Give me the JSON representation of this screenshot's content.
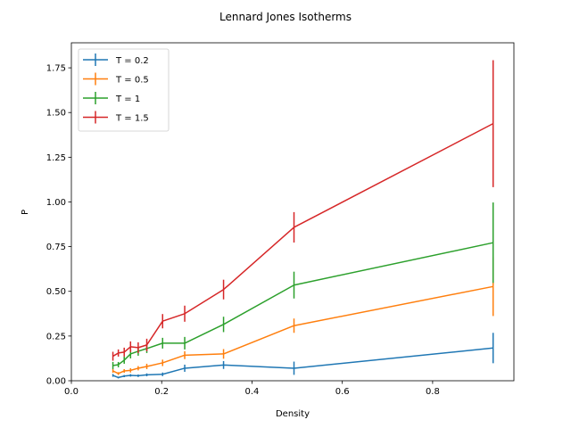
{
  "chart_data": {
    "type": "line",
    "title": "Lennard Jones Isotherms",
    "xlabel": "Density",
    "ylabel": "P",
    "xlim": [
      0.0,
      0.98
    ],
    "ylim": [
      0.0,
      1.89
    ],
    "xticks": [
      0.0,
      0.2,
      0.4,
      0.6,
      0.8
    ],
    "xtick_labels": [
      "0.0",
      "0.2",
      "0.4",
      "0.6",
      "0.8"
    ],
    "yticks": [
      0.0,
      0.25,
      0.5,
      0.75,
      1.0,
      1.25,
      1.5,
      1.75
    ],
    "ytick_labels": [
      "0.00",
      "0.25",
      "0.50",
      "0.75",
      "1.00",
      "1.25",
      "1.50",
      "1.75"
    ],
    "grid": false,
    "legend_position": "top-left",
    "x": [
      0.092,
      0.104,
      0.117,
      0.131,
      0.148,
      0.167,
      0.202,
      0.251,
      0.337,
      0.493,
      0.934
    ],
    "series": [
      {
        "name": "T = 0.2",
        "color": "#1f77b4",
        "values": [
          0.03,
          0.018,
          0.026,
          0.03,
          0.028,
          0.033,
          0.036,
          0.07,
          0.088,
          0.07,
          0.183
        ],
        "errors": [
          0.008,
          0.005,
          0.006,
          0.007,
          0.007,
          0.008,
          0.01,
          0.02,
          0.022,
          0.037,
          0.085
        ]
      },
      {
        "name": "T = 0.5",
        "color": "#ff7f0e",
        "values": [
          0.055,
          0.04,
          0.055,
          0.058,
          0.07,
          0.08,
          0.1,
          0.143,
          0.15,
          0.308,
          0.527
        ],
        "errors": [
          0.01,
          0.008,
          0.01,
          0.012,
          0.012,
          0.015,
          0.018,
          0.022,
          0.027,
          0.04,
          0.165
        ]
      },
      {
        "name": "T = 1",
        "color": "#2ca02c",
        "values": [
          0.085,
          0.09,
          0.115,
          0.15,
          0.165,
          0.18,
          0.21,
          0.21,
          0.315,
          0.535,
          0.772
        ],
        "errors": [
          0.02,
          0.015,
          0.02,
          0.025,
          0.025,
          0.025,
          0.03,
          0.035,
          0.043,
          0.075,
          0.225
        ]
      },
      {
        "name": "T = 1.5",
        "color": "#d62728",
        "values": [
          0.137,
          0.155,
          0.16,
          0.19,
          0.185,
          0.2,
          0.333,
          0.375,
          0.51,
          0.858,
          1.438
        ],
        "errors": [
          0.025,
          0.02,
          0.025,
          0.03,
          0.03,
          0.035,
          0.04,
          0.045,
          0.055,
          0.085,
          0.355
        ]
      }
    ]
  }
}
